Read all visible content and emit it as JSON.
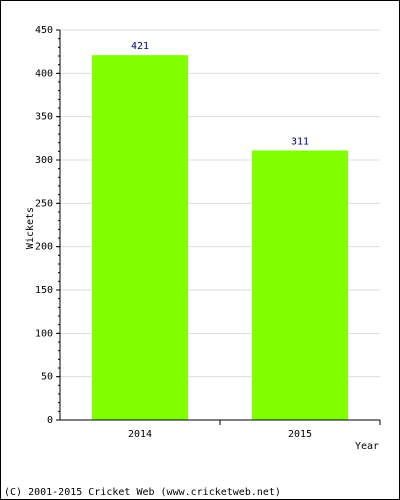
{
  "chart_data": {
    "type": "bar",
    "categories": [
      "2014",
      "2015"
    ],
    "values": [
      421,
      311
    ],
    "data_labels": [
      "421",
      "311"
    ],
    "xlabel": "Year",
    "ylabel": "Wickets",
    "ylim": [
      0,
      450
    ],
    "yticks": [
      0,
      50,
      100,
      150,
      200,
      250,
      300,
      350,
      400,
      450
    ],
    "grid": true,
    "bar_color": "#80ff00",
    "label_color": "#000080"
  },
  "footer": {
    "copyright": "(C) 2001-2015 Cricket Web (www.cricketweb.net)"
  }
}
